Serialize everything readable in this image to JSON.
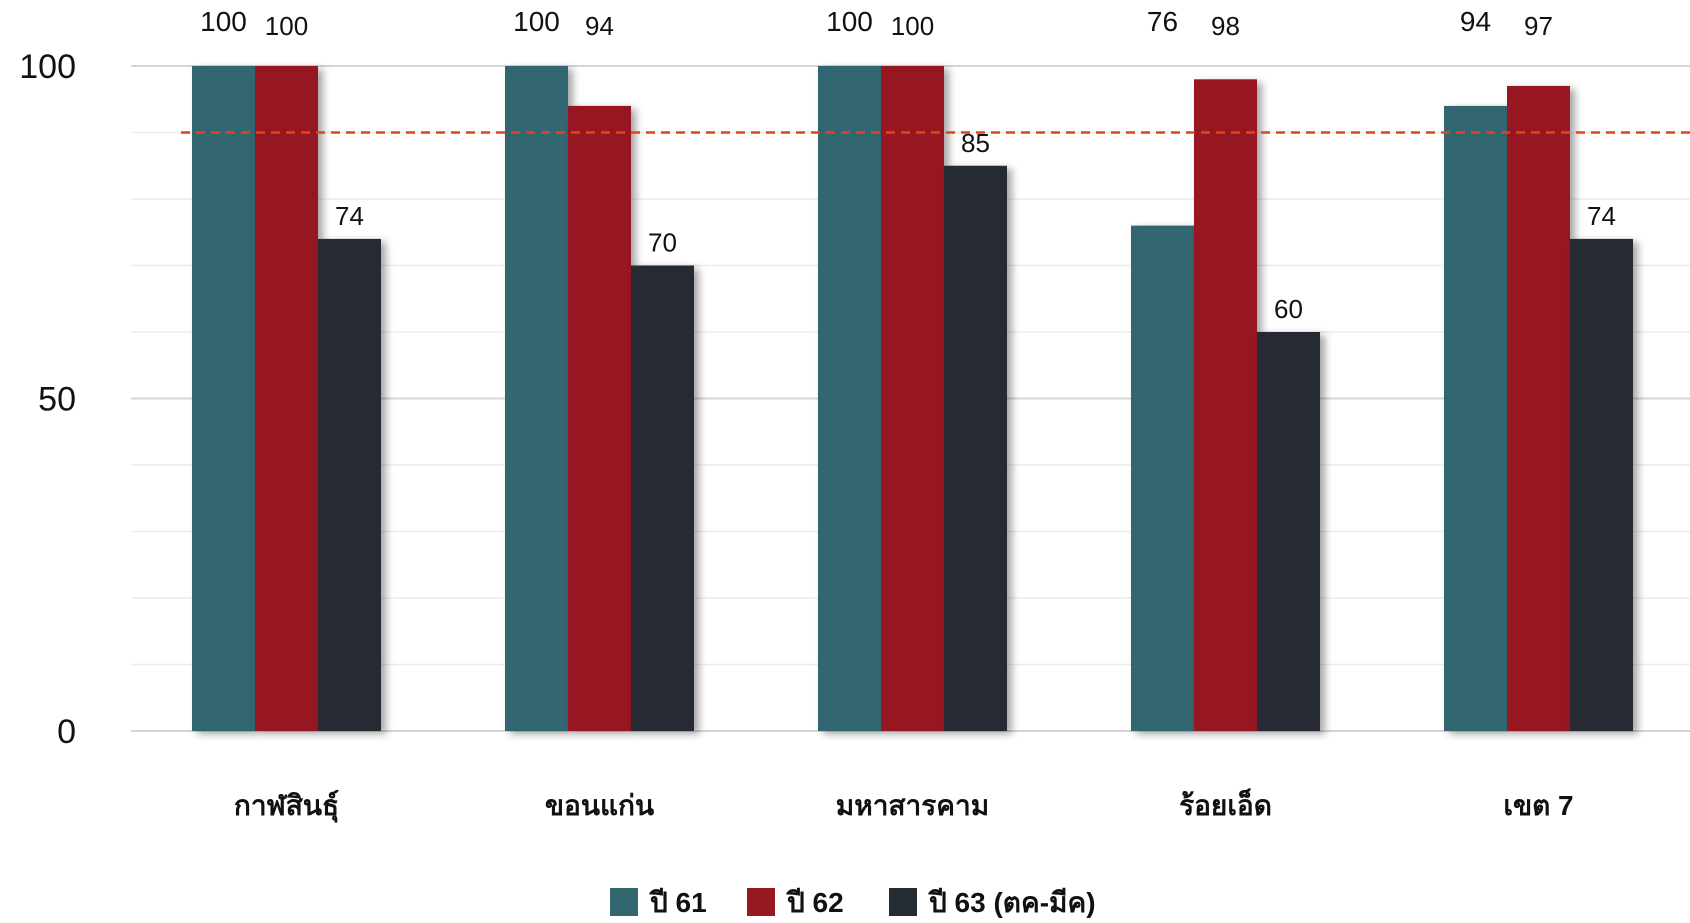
{
  "chart_data": {
    "type": "bar",
    "categories": [
      "กาฬสินธุ์",
      "ขอนแก่น",
      "มหาสารคาม",
      "ร้อยเอ็ด",
      "เขต 7"
    ],
    "series": [
      {
        "name": "ปี 61",
        "color": "#33666f",
        "values": [
          100,
          100,
          100,
          76,
          94
        ]
      },
      {
        "name": "ปี 62",
        "color": "#961820",
        "values": [
          100,
          94,
          100,
          98,
          97
        ]
      },
      {
        "name": "ปี 63 (ตค-มีค)",
        "color": "#252b32",
        "values": [
          74,
          70,
          85,
          60,
          74
        ]
      }
    ],
    "ylim": [
      0,
      100
    ],
    "yticks": [
      "0",
      "50",
      "100"
    ],
    "target_line": {
      "value": 90,
      "color": "#e8401c",
      "style": "dashed"
    },
    "grid": true,
    "legend_position": "bottom"
  }
}
